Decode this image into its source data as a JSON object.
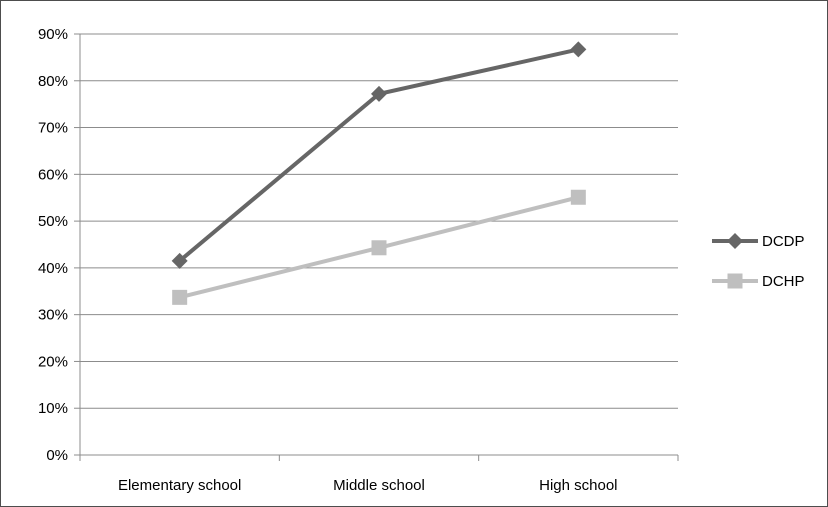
{
  "chart_data": {
    "type": "line",
    "title": "",
    "xlabel": "",
    "ylabel": "",
    "categories": [
      "Elementary school",
      "Middle school",
      "High school"
    ],
    "y_ticks": [
      "0%",
      "10%",
      "20%",
      "30%",
      "40%",
      "50%",
      "60%",
      "70%",
      "80%",
      "90%"
    ],
    "ylim": [
      0,
      90
    ],
    "y_unit": "%",
    "grid": true,
    "legend_position": "right",
    "series": [
      {
        "name": "DCDP",
        "values": [
          41.5,
          77.2,
          86.7
        ],
        "color": "#666666",
        "marker": "diamond"
      },
      {
        "name": "DCHP",
        "values": [
          33.7,
          44.3,
          55.1
        ],
        "color": "#bfbfbf",
        "marker": "square"
      }
    ]
  }
}
